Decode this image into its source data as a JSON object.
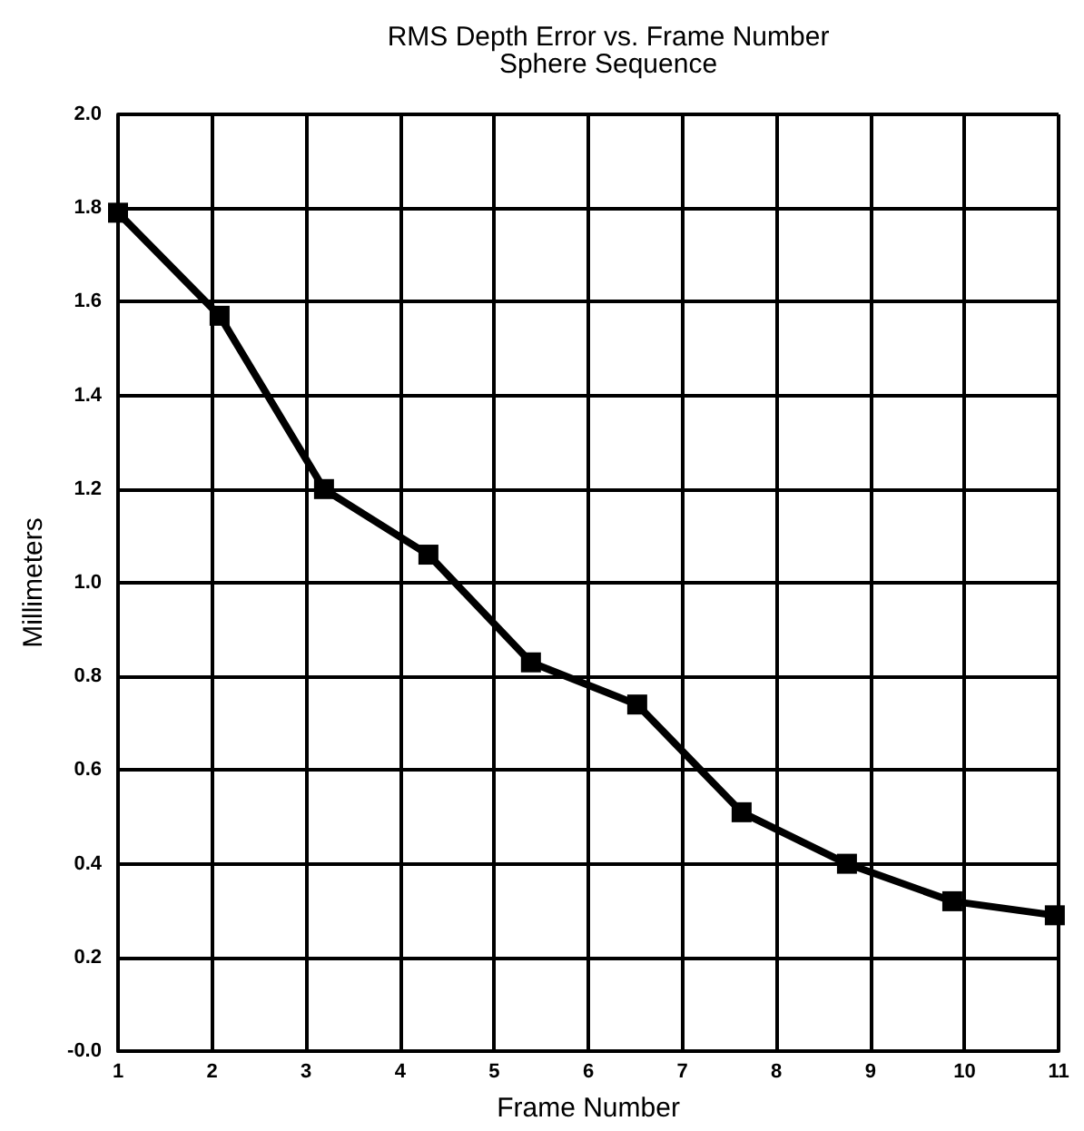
{
  "chart_data": {
    "type": "line",
    "title": "RMS Depth Error vs. Frame Number",
    "subtitle": "Sphere Sequence",
    "xlabel": "Frame Number",
    "ylabel": "Millimeters",
    "x": [
      1.0,
      2.08,
      3.19,
      4.3,
      5.39,
      6.52,
      7.63,
      8.75,
      9.87,
      10.96
    ],
    "series": [
      {
        "color": "#000000",
        "values": [
          1.79,
          1.57,
          1.2,
          1.06,
          0.83,
          0.74,
          0.51,
          0.4,
          0.32,
          0.29
        ]
      }
    ],
    "xlim": [
      1,
      11
    ],
    "xticks": [
      1,
      2,
      3,
      4,
      5,
      6,
      7,
      8,
      9,
      10,
      11
    ],
    "ylim": [
      0,
      2
    ],
    "yticks": [
      {
        "value": 0,
        "label": "-0.0"
      },
      {
        "value": 0.2,
        "label": "0.2"
      },
      {
        "value": 0.4,
        "label": "0.4"
      },
      {
        "value": 0.6,
        "label": "0.6"
      },
      {
        "value": 0.8,
        "label": "0.8"
      },
      {
        "value": 1.0,
        "label": "1.0"
      },
      {
        "value": 1.2,
        "label": "1.2"
      },
      {
        "value": 1.4,
        "label": "1.4"
      },
      {
        "value": 1.6,
        "label": "1.6"
      },
      {
        "value": 1.8,
        "label": "1.8"
      },
      {
        "value": 2.0,
        "label": "2.0"
      }
    ],
    "grid": true,
    "marker": "square",
    "line_style": "solid"
  }
}
